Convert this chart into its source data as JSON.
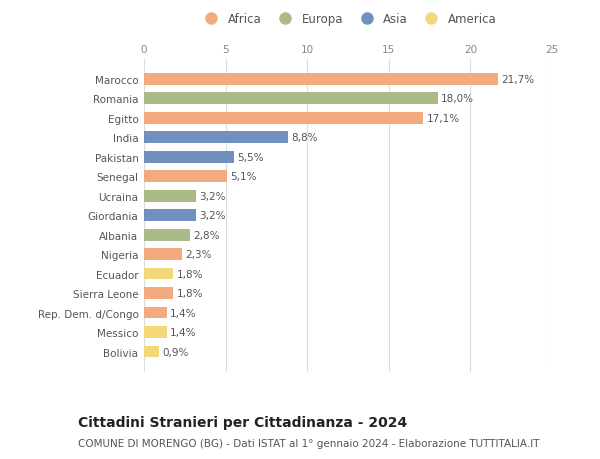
{
  "countries": [
    "Marocco",
    "Romania",
    "Egitto",
    "India",
    "Pakistan",
    "Senegal",
    "Ucraina",
    "Giordania",
    "Albania",
    "Nigeria",
    "Ecuador",
    "Sierra Leone",
    "Rep. Dem. d/Congo",
    "Messico",
    "Bolivia"
  ],
  "values": [
    21.7,
    18.0,
    17.1,
    8.8,
    5.5,
    5.1,
    3.2,
    3.2,
    2.8,
    2.3,
    1.8,
    1.8,
    1.4,
    1.4,
    0.9
  ],
  "labels": [
    "21,7%",
    "18,0%",
    "17,1%",
    "8,8%",
    "5,5%",
    "5,1%",
    "3,2%",
    "3,2%",
    "2,8%",
    "2,3%",
    "1,8%",
    "1,8%",
    "1,4%",
    "1,4%",
    "0,9%"
  ],
  "continents": [
    "Africa",
    "Europa",
    "Africa",
    "Asia",
    "Asia",
    "Africa",
    "Europa",
    "Asia",
    "Europa",
    "Africa",
    "America",
    "Africa",
    "Africa",
    "America",
    "America"
  ],
  "continent_colors": {
    "Africa": "#F2AA7E",
    "Europa": "#AABB88",
    "Asia": "#7090BE",
    "America": "#F2D878"
  },
  "legend_order": [
    "Africa",
    "Europa",
    "Asia",
    "America"
  ],
  "title": "Cittadini Stranieri per Cittadinanza - 2024",
  "subtitle": "COMUNE DI MORENGO (BG) - Dati ISTAT al 1° gennaio 2024 - Elaborazione TUTTITALIA.IT",
  "xlim": [
    0,
    25
  ],
  "xticks": [
    0,
    5,
    10,
    15,
    20,
    25
  ],
  "background_color": "#ffffff",
  "bar_height": 0.6,
  "title_fontsize": 10,
  "subtitle_fontsize": 7.5,
  "label_fontsize": 7.5,
  "tick_fontsize": 7.5,
  "legend_fontsize": 8.5
}
